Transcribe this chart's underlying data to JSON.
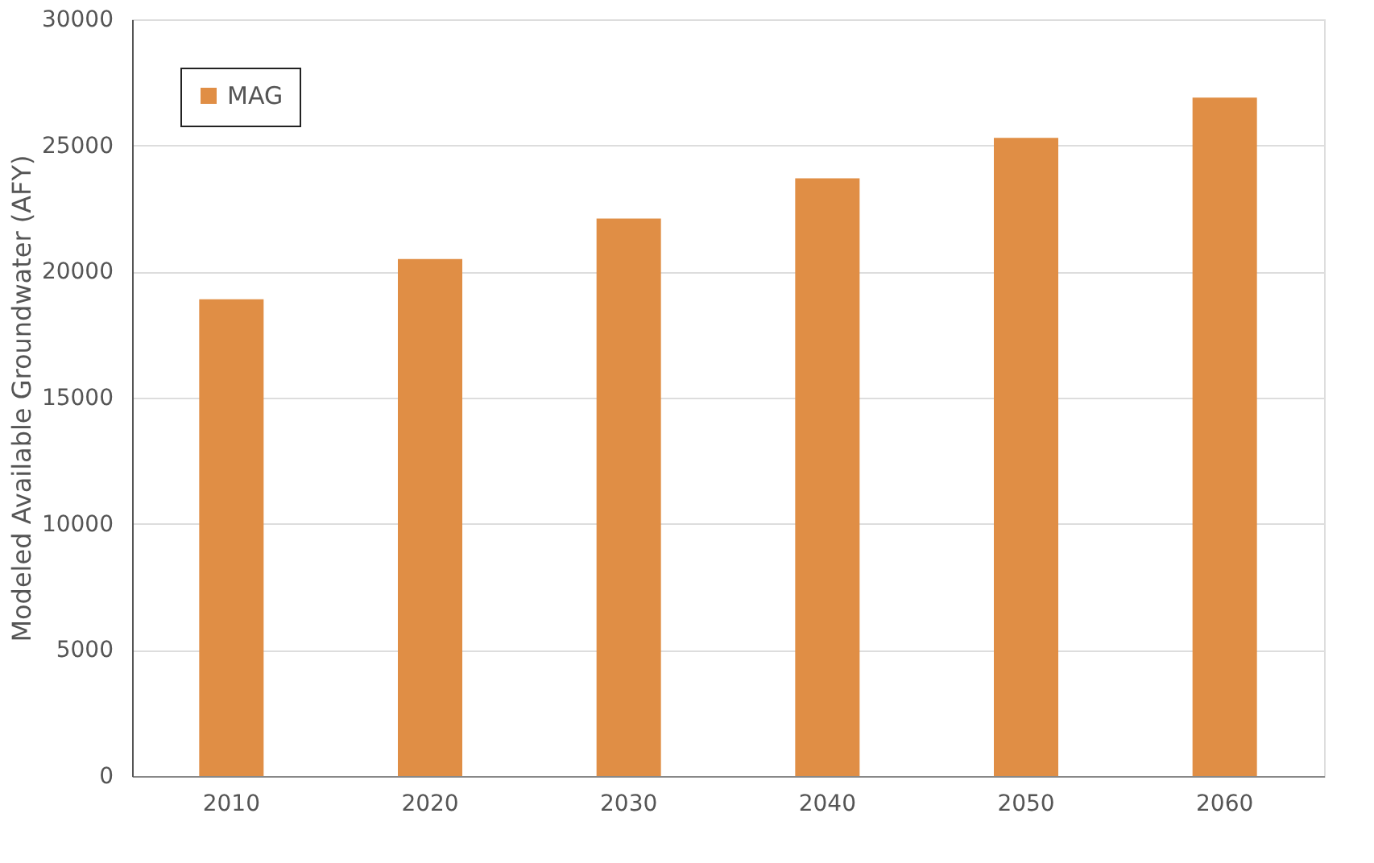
{
  "chart_data": {
    "type": "bar",
    "ylabel": "Modeled Available Groundwater (AFY)",
    "categories": [
      "2010",
      "2020",
      "2030",
      "2040",
      "2050",
      "2060"
    ],
    "series": [
      {
        "name": "MAG",
        "color": "#e08e45",
        "values": [
          18900,
          20500,
          22100,
          23700,
          25300,
          26900
        ]
      }
    ],
    "ylim": [
      0,
      30000
    ],
    "yticks": [
      0,
      5000,
      10000,
      15000,
      20000,
      25000,
      30000
    ],
    "grid": "y",
    "legend": "top left"
  }
}
